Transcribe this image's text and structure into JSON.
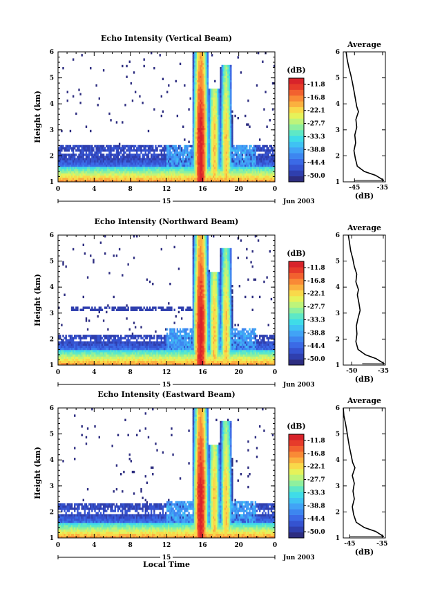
{
  "figure": {
    "x_tick_labels": [
      "0",
      "4",
      "8",
      "12",
      "16",
      "20",
      "0"
    ],
    "y_tick_labels": [
      "1",
      "2",
      "3",
      "4",
      "5",
      "6"
    ],
    "y_axis_label": "Height (km)",
    "date_bar_label": "15",
    "date_label": "Jun 2003",
    "x_axis_label": "Local Time",
    "colorbar_unit": "(dB)",
    "colorbar_ticks": [
      "-11.8",
      "-16.8",
      "-22.1",
      "-27.7",
      "-33.3",
      "-38.8",
      "-44.4",
      "-50.0"
    ],
    "colorbar_colors": [
      "#2d2d80",
      "#2f3fae",
      "#3553d0",
      "#3b6ae6",
      "#3d86f0",
      "#41a3f6",
      "#3fc2f3",
      "#3fdce8",
      "#5ee8c6",
      "#8ef09e",
      "#bef47a",
      "#e6f25a",
      "#f9d94a",
      "#fbb13f",
      "#f98a36",
      "#f2612f",
      "#e63b2a",
      "#d8232a"
    ],
    "average_title": "Average",
    "average_x_label": "(dB)"
  },
  "chart_data": [
    {
      "type": "heatmap",
      "title": "Echo Intensity (Vertical Beam)",
      "xlabel": "",
      "ylabel": "Height (km)",
      "x_unit": "local time (h), 15 Jun 2003 to 16 Jun 2003",
      "xlim": [
        0,
        24
      ],
      "ylim": [
        1,
        6
      ],
      "x_ticks": [
        0,
        4,
        8,
        12,
        16,
        20,
        24
      ],
      "y_ticks": [
        1,
        2,
        3,
        4,
        5,
        6
      ],
      "colorbar": {
        "label": "(dB)",
        "min": -50.0,
        "max": -11.8
      },
      "features": {
        "boundary_layer_echo_top_km": 2.4,
        "rain_bands_local_time_h": [
          15.8,
          17.3,
          18.6
        ],
        "rain_band_peak_db": -11.8,
        "strongest_echo_height_km": 1.5
      }
    },
    {
      "type": "line",
      "title": "Average",
      "xlabel": "(dB)",
      "ylabel": "",
      "x_ticks": [
        -45,
        -35
      ],
      "xlim": [
        -49,
        -34
      ],
      "ylim": [
        1,
        6
      ],
      "series": [
        {
          "height_km": [
            1.05,
            1.25,
            1.4,
            1.6,
            1.9,
            2.2,
            2.5,
            2.8,
            3.1,
            3.4,
            3.7,
            3.9,
            4.2,
            4.5,
            4.8,
            5.1,
            5.4,
            5.7,
            6.0
          ],
          "values": [
            -34.5,
            -37.5,
            -41.5,
            -44.0,
            -44.7,
            -45.2,
            -44.6,
            -44.9,
            -44.2,
            -44.5,
            -43.6,
            -44.2,
            -44.7,
            -45.2,
            -45.7,
            -46.3,
            -47.0,
            -47.6,
            -48.0
          ]
        }
      ]
    },
    {
      "type": "heatmap",
      "title": "Echo Intensity (Northward Beam)",
      "xlabel": "",
      "ylabel": "Height (km)",
      "x_unit": "local time (h), 15 Jun 2003 to 16 Jun 2003",
      "xlim": [
        0,
        24
      ],
      "ylim": [
        1,
        6
      ],
      "x_ticks": [
        0,
        4,
        8,
        12,
        16,
        20,
        24
      ],
      "y_ticks": [
        1,
        2,
        3,
        4,
        5,
        6
      ],
      "colorbar": {
        "label": "(dB)",
        "min": -50.0,
        "max": -11.8
      },
      "features": {
        "boundary_layer_echo_top_km": 2.2,
        "elevated_echo_layer_km": 3.15,
        "rain_bands_local_time_h": [
          15.8,
          17.3,
          18.6
        ],
        "rain_band_peak_db": -11.8,
        "strongest_echo_height_km": 1.5
      }
    },
    {
      "type": "line",
      "title": "Average",
      "xlabel": "(dB)",
      "ylabel": "",
      "x_ticks": [
        -50,
        -35
      ],
      "xlim": [
        -54,
        -34
      ],
      "ylim": [
        1,
        6
      ],
      "series": [
        {
          "height_km": [
            1.05,
            1.25,
            1.4,
            1.6,
            1.9,
            2.2,
            2.5,
            2.8,
            3.1,
            3.4,
            3.7,
            3.9,
            4.2,
            4.5,
            4.8,
            5.1,
            5.4,
            5.7,
            6.0
          ],
          "values": [
            -34.5,
            -38.5,
            -43.5,
            -47.0,
            -48.0,
            -47.5,
            -47.8,
            -47.0,
            -46.0,
            -46.6,
            -47.3,
            -46.8,
            -48.0,
            -47.6,
            -48.8,
            -49.5,
            -50.5,
            -51.0,
            -51.6
          ]
        }
      ]
    },
    {
      "type": "heatmap",
      "title": "Echo Intensity (Eastward Beam)",
      "xlabel": "Local Time",
      "ylabel": "Height (km)",
      "x_unit": "local time (h), 15 Jun 2003 to 16 Jun 2003",
      "xlim": [
        0,
        24
      ],
      "ylim": [
        1,
        6
      ],
      "x_ticks": [
        0,
        4,
        8,
        12,
        16,
        20,
        24
      ],
      "y_ticks": [
        1,
        2,
        3,
        4,
        5,
        6
      ],
      "colorbar": {
        "label": "(dB)",
        "min": -50.0,
        "max": -11.8
      },
      "features": {
        "boundary_layer_echo_top_km": 2.3,
        "rain_bands_local_time_h": [
          15.8,
          17.3,
          18.6
        ],
        "rain_band_peak_db": -11.8,
        "strongest_echo_height_km": 1.4
      }
    },
    {
      "type": "line",
      "title": "Average",
      "xlabel": "(dB)",
      "ylabel": "",
      "x_ticks": [
        -45,
        -35
      ],
      "xlim": [
        -47,
        -34
      ],
      "ylim": [
        1,
        6
      ],
      "series": [
        {
          "height_km": [
            1.05,
            1.25,
            1.4,
            1.6,
            1.9,
            2.2,
            2.5,
            2.8,
            3.1,
            3.4,
            3.7,
            3.9,
            4.2,
            4.5,
            4.8,
            5.1,
            5.4,
            5.7,
            6.0
          ],
          "values": [
            -34.5,
            -37.0,
            -40.5,
            -43.0,
            -43.8,
            -44.2,
            -43.6,
            -44.0,
            -43.6,
            -44.2,
            -43.4,
            -44.1,
            -44.6,
            -45.1,
            -45.5,
            -45.9,
            -46.3,
            -46.8,
            -47.0
          ]
        }
      ]
    }
  ]
}
